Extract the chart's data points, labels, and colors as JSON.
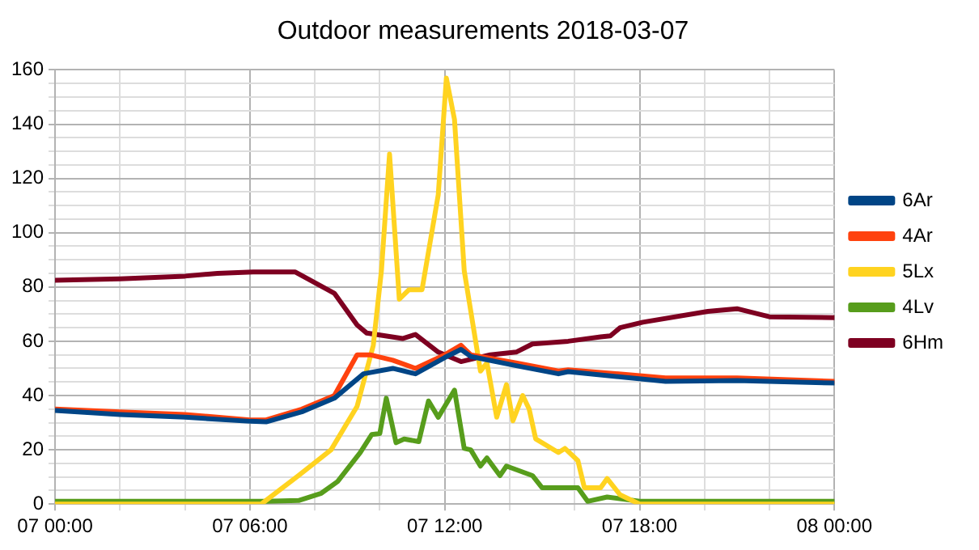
{
  "chart_data": {
    "type": "line",
    "title": "Outdoor measurements 2018-03-07",
    "legend": "right",
    "grid": true,
    "marker": "none",
    "line_style": "solid",
    "xlim": [
      "2018-03-07T00:00",
      "2018-03-08T00:00"
    ],
    "ylim": [
      0,
      160
    ],
    "xticks": [
      {
        "value": "2018-03-07T00:00",
        "label": "07 00:00"
      },
      {
        "value": "2018-03-07T02:00",
        "label": null
      },
      {
        "value": "2018-03-07T04:00",
        "label": null
      },
      {
        "value": "2018-03-07T06:00",
        "label": "07 06:00"
      },
      {
        "value": "2018-03-07T08:00",
        "label": null
      },
      {
        "value": "2018-03-07T10:00",
        "label": null
      },
      {
        "value": "2018-03-07T12:00",
        "label": "07 12:00"
      },
      {
        "value": "2018-03-07T14:00",
        "label": null
      },
      {
        "value": "2018-03-07T16:00",
        "label": null
      },
      {
        "value": "2018-03-07T18:00",
        "label": "07 18:00"
      },
      {
        "value": "2018-03-07T20:00",
        "label": null
      },
      {
        "value": "2018-03-07T22:00",
        "label": null
      },
      {
        "value": "2018-03-08T00:00",
        "label": "08 00:00"
      }
    ],
    "yticks": [
      0,
      {
        "value": 5,
        "label": null
      },
      {
        "value": 10,
        "label": null
      },
      {
        "value": 15,
        "label": null
      },
      20,
      {
        "value": 25,
        "label": null
      },
      {
        "value": 30,
        "label": null
      },
      {
        "value": 35,
        "label": null
      },
      40,
      {
        "value": 45,
        "label": null
      },
      {
        "value": 50,
        "label": null
      },
      {
        "value": 55,
        "label": null
      },
      60,
      {
        "value": 65,
        "label": null
      },
      {
        "value": 70,
        "label": null
      },
      {
        "value": 75,
        "label": null
      },
      80,
      {
        "value": 85,
        "label": null
      },
      {
        "value": 90,
        "label": null
      },
      {
        "value": 95,
        "label": null
      },
      100,
      {
        "value": 105,
        "label": null
      },
      {
        "value": 110,
        "label": null
      },
      {
        "value": 115,
        "label": null
      },
      120,
      {
        "value": 125,
        "label": null
      },
      {
        "value": 130,
        "label": null
      },
      {
        "value": 135,
        "label": null
      },
      140,
      {
        "value": 145,
        "label": null
      },
      {
        "value": 150,
        "label": null
      },
      {
        "value": 155,
        "label": null
      },
      160
    ],
    "series": [
      {
        "name": "6Ar",
        "color": "#004586",
        "x": [
          "2018-03-07T00:00",
          "2018-03-07T02:00",
          "2018-03-07T04:00",
          "2018-03-07T06:00",
          "2018-03-07T06:30",
          "2018-03-07T07:36",
          "2018-03-07T08:36",
          "2018-03-07T09:30",
          "2018-03-07T10:24",
          "2018-03-07T11:06",
          "2018-03-07T12:00",
          "2018-03-07T12:30",
          "2018-03-07T12:48",
          "2018-03-07T14:12",
          "2018-03-07T15:30",
          "2018-03-07T15:48",
          "2018-03-07T18:48",
          "2018-03-07T21:00",
          "2018-03-08T00:00"
        ],
        "values": [
          34.5,
          33,
          32,
          30.5,
          30.3,
          34,
          39,
          48,
          50,
          48,
          54,
          57,
          54.4,
          51,
          48,
          48.8,
          45.2,
          45.5,
          44.6
        ]
      },
      {
        "name": "4Ar",
        "color": "#ff420e",
        "x": [
          "2018-03-07T00:00",
          "2018-03-07T02:00",
          "2018-03-07T04:00",
          "2018-03-07T06:00",
          "2018-03-07T06:30",
          "2018-03-07T07:36",
          "2018-03-07T08:36",
          "2018-03-07T09:18",
          "2018-03-07T09:42",
          "2018-03-07T10:24",
          "2018-03-07T11:06",
          "2018-03-07T12:00",
          "2018-03-07T12:30",
          "2018-03-07T12:48",
          "2018-03-07T14:12",
          "2018-03-07T15:30",
          "2018-03-07T15:48",
          "2018-03-07T18:48",
          "2018-03-07T21:00",
          "2018-03-08T00:00"
        ],
        "values": [
          35,
          34,
          33,
          31,
          31,
          35,
          40,
          55,
          55,
          53,
          50,
          55,
          58.5,
          55,
          52,
          49,
          49.5,
          46.5,
          46.5,
          45.2
        ]
      },
      {
        "name": "5Lx",
        "color": "#ffd320",
        "x": [
          "2018-03-07T00:00",
          "2018-03-07T06:21",
          "2018-03-07T07:30",
          "2018-03-07T08:30",
          "2018-03-07T09:18",
          "2018-03-07T09:48",
          "2018-03-07T10:03",
          "2018-03-07T10:18",
          "2018-03-07T10:36",
          "2018-03-07T10:54",
          "2018-03-07T11:18",
          "2018-03-07T11:48",
          "2018-03-07T12:03",
          "2018-03-07T12:18",
          "2018-03-07T12:36",
          "2018-03-07T13:06",
          "2018-03-07T13:18",
          "2018-03-07T13:36",
          "2018-03-07T13:54",
          "2018-03-07T14:06",
          "2018-03-07T14:24",
          "2018-03-07T14:36",
          "2018-03-07T14:48",
          "2018-03-07T15:30",
          "2018-03-07T15:42",
          "2018-03-07T16:06",
          "2018-03-07T16:18",
          "2018-03-07T16:48",
          "2018-03-07T17:00",
          "2018-03-07T17:24",
          "2018-03-07T18:00",
          "2018-03-08T00:00"
        ],
        "values": [
          0,
          0,
          10.5,
          20,
          36,
          58.5,
          86,
          129,
          75.5,
          79,
          79,
          114,
          157,
          141.7,
          86,
          49,
          52,
          32,
          44,
          30.7,
          40,
          35,
          24,
          19,
          20.5,
          16,
          6,
          6,
          9.4,
          3.4,
          0,
          0
        ]
      },
      {
        "name": "4Lv",
        "color": "#579d1c",
        "x": [
          "2018-03-07T00:00",
          "2018-03-07T06:30",
          "2018-03-07T07:30",
          "2018-03-07T08:12",
          "2018-03-07T08:42",
          "2018-03-07T09:24",
          "2018-03-07T09:45",
          "2018-03-07T10:00",
          "2018-03-07T10:12",
          "2018-03-07T10:30",
          "2018-03-07T10:45",
          "2018-03-07T11:12",
          "2018-03-07T11:30",
          "2018-03-07T11:48",
          "2018-03-07T12:18",
          "2018-03-07T12:36",
          "2018-03-07T12:48",
          "2018-03-07T13:06",
          "2018-03-07T13:18",
          "2018-03-07T13:42",
          "2018-03-07T13:54",
          "2018-03-07T14:42",
          "2018-03-07T15:00",
          "2018-03-07T16:06",
          "2018-03-07T16:24",
          "2018-03-07T17:00",
          "2018-03-07T18:00",
          "2018-03-08T00:00"
        ],
        "values": [
          1,
          1,
          1.3,
          4,
          8.3,
          19,
          25.6,
          26,
          39,
          22.6,
          24,
          23,
          38,
          32,
          42,
          20.5,
          20,
          14,
          17,
          10.5,
          14,
          10.5,
          6,
          6,
          1,
          2.6,
          1,
          1
        ]
      },
      {
        "name": "6Hm",
        "color": "#7e0021",
        "x": [
          "2018-03-07T00:00",
          "2018-03-07T02:00",
          "2018-03-07T04:00",
          "2018-03-07T05:00",
          "2018-03-07T06:06",
          "2018-03-07T07:24",
          "2018-03-07T08:36",
          "2018-03-07T09:18",
          "2018-03-07T09:36",
          "2018-03-07T10:42",
          "2018-03-07T11:06",
          "2018-03-07T11:48",
          "2018-03-07T12:30",
          "2018-03-07T13:24",
          "2018-03-07T14:12",
          "2018-03-07T14:42",
          "2018-03-07T15:48",
          "2018-03-07T16:48",
          "2018-03-07T17:06",
          "2018-03-07T17:24",
          "2018-03-07T18:06",
          "2018-03-07T20:06",
          "2018-03-07T21:00",
          "2018-03-07T22:00",
          "2018-03-08T00:00"
        ],
        "values": [
          82.5,
          83,
          84,
          85,
          85.5,
          85.5,
          77.7,
          66,
          63,
          61,
          62.5,
          56,
          52.5,
          55,
          56,
          59,
          60,
          61.6,
          62,
          65,
          67,
          71,
          72,
          69,
          68.7
        ]
      }
    ]
  }
}
